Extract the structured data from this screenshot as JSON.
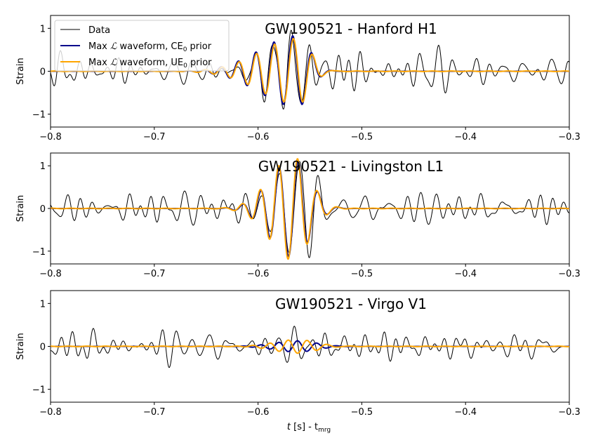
{
  "figure": {
    "xlabel": {
      "main": "t",
      "unit": " [s] - t",
      "sub": "mrg"
    },
    "colors": {
      "data": "#000000",
      "ce": "#00008b",
      "ue": "#ffa500"
    }
  },
  "legend": {
    "location": "upper-left of top panel",
    "entries": [
      {
        "label": "Data"
      },
      {
        "prefix": "Max ",
        "script": "ℒ",
        "mid": " waveform, CE",
        "sub": "0",
        "suffix": " prior"
      },
      {
        "prefix": "Max ",
        "script": "ℒ",
        "mid": " waveform, UE",
        "sub": "0",
        "suffix": " prior"
      }
    ]
  },
  "chart_data": [
    {
      "type": "line",
      "title": "GW190521 - Hanford H1",
      "ylabel": "Strain",
      "xlim": [
        -0.8,
        -0.3
      ],
      "ylim": [
        -1.3,
        1.3
      ],
      "xticks": [
        -0.8,
        -0.7,
        -0.6,
        -0.5,
        -0.4,
        -0.3
      ],
      "xtick_labels": [
        "−0.8",
        "−0.7",
        "−0.6",
        "−0.5",
        "−0.4",
        "−0.3"
      ],
      "yticks": [
        -1,
        0,
        1
      ],
      "ytick_labels": [
        "−1",
        "0",
        "1"
      ],
      "signal": {
        "t0": -0.562,
        "pre_width": 0.036,
        "post_width": 0.012,
        "amp": 0.83,
        "f_base": 40,
        "chirp": 220,
        "phase": 1.5707963,
        "ce_scale": 1.0,
        "ue_scale": 0.93,
        "ue_dt": 0.0006
      },
      "noise": {
        "seed": 11,
        "amp": 0.28,
        "freqs": [
          38,
          47,
          55,
          63,
          72,
          81,
          90,
          104
        ]
      }
    },
    {
      "type": "line",
      "title": "GW190521 - Livingston L1",
      "ylabel": "Strain",
      "xlim": [
        -0.8,
        -0.3
      ],
      "ylim": [
        -1.3,
        1.3
      ],
      "xticks": [
        -0.8,
        -0.7,
        -0.6,
        -0.5,
        -0.4,
        -0.3
      ],
      "xtick_labels": [
        "−0.8",
        "−0.7",
        "−0.6",
        "−0.5",
        "−0.4",
        "−0.3"
      ],
      "yticks": [
        -1,
        0,
        1
      ],
      "ytick_labels": [
        "−1",
        "0",
        "1"
      ],
      "signal": {
        "t0": -0.566,
        "pre_width": 0.022,
        "post_width": 0.016,
        "amp": 1.15,
        "f_base": 40,
        "chirp": 220,
        "phase": -1.5707963,
        "ce_scale": 1.0,
        "ue_scale": 1.05,
        "ue_dt": -0.0005
      },
      "noise": {
        "seed": 23,
        "amp": 0.26,
        "freqs": [
          36,
          45,
          53,
          61,
          70,
          79,
          88,
          101
        ]
      }
    },
    {
      "type": "line",
      "title": "GW190521 - Virgo V1",
      "ylabel": "Strain",
      "xlim": [
        -0.8,
        -0.3
      ],
      "ylim": [
        -1.3,
        1.3
      ],
      "xticks": [
        -0.8,
        -0.7,
        -0.6,
        -0.5,
        -0.4,
        -0.3
      ],
      "xtick_labels": [
        "−0.8",
        "−0.7",
        "−0.6",
        "−0.5",
        "−0.4",
        "−0.3"
      ],
      "yticks": [
        -1,
        0,
        1
      ],
      "ytick_labels": [
        "−1",
        "0",
        "1"
      ],
      "signal": {
        "t0": -0.562,
        "pre_width": 0.022,
        "post_width": 0.018,
        "amp": 0.13,
        "f_base": 42,
        "chirp": 200,
        "phase": 0.0,
        "ce_scale": 1.0,
        "ue_scale": -1.25,
        "ue_dt": 0.0
      },
      "noise": {
        "seed": 37,
        "amp": 0.24,
        "freqs": [
          37,
          46,
          54,
          62,
          71,
          80,
          89,
          103
        ]
      }
    }
  ]
}
